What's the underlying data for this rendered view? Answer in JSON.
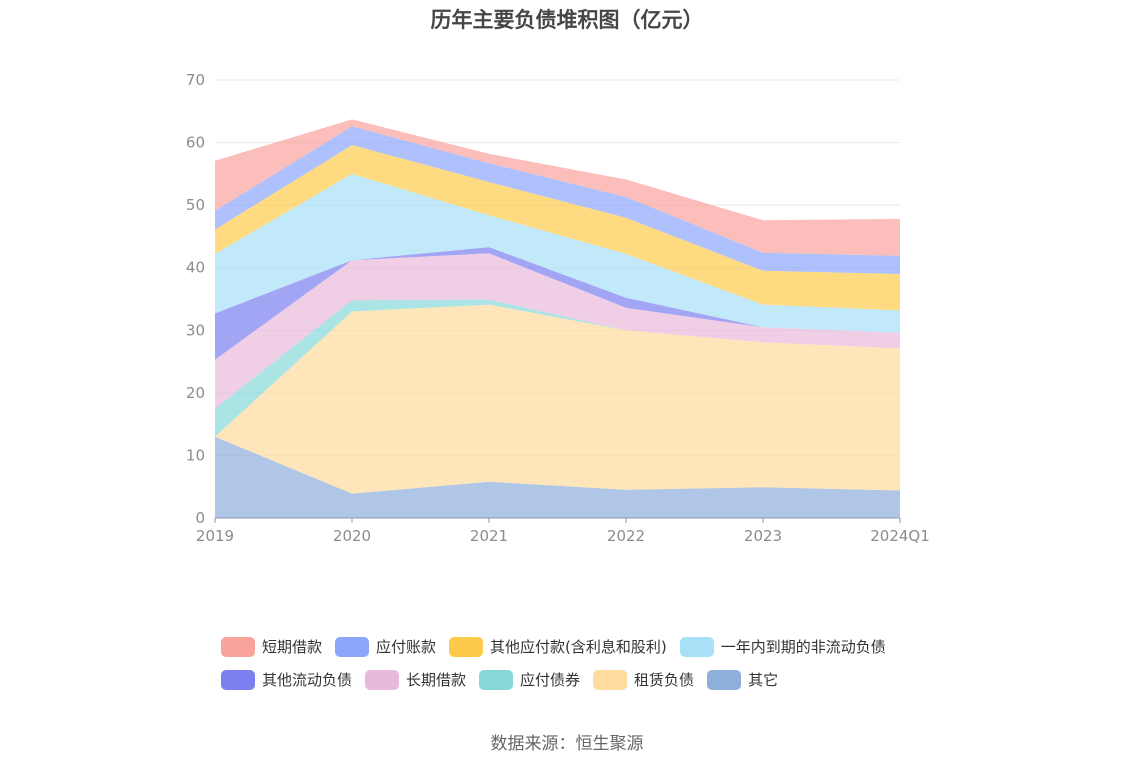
{
  "chart_data": {
    "type": "area",
    "stacked": true,
    "title": "历年主要负债堆积图（亿元）",
    "x": [
      "2019",
      "2020",
      "2021",
      "2022",
      "2023",
      "2024Q1"
    ],
    "ylim": [
      0,
      70
    ],
    "yticks": [
      "0",
      "10",
      "20",
      "30",
      "40",
      "50",
      "60",
      "70"
    ],
    "grid": true,
    "legend_position": "bottom",
    "series": [
      {
        "name": "其它",
        "color": "#8eaedb",
        "values": [
          13.0,
          3.9,
          5.8,
          4.5,
          4.9,
          4.4
        ]
      },
      {
        "name": "租赁负债",
        "color": "#fddc9d",
        "values": [
          0.0,
          29.1,
          28.3,
          25.5,
          23.2,
          22.7
        ]
      },
      {
        "name": "应付债券",
        "color": "#86d8d8",
        "values": [
          4.5,
          1.8,
          0.8,
          0.0,
          0.0,
          0.0
        ]
      },
      {
        "name": "长期借款",
        "color": "#e9b9dc",
        "values": [
          7.8,
          6.4,
          7.4,
          3.6,
          2.4,
          2.5
        ]
      },
      {
        "name": "其他流动负债",
        "color": "#7b7ff0",
        "values": [
          7.4,
          0.0,
          1.0,
          1.6,
          0.0,
          0.0
        ]
      },
      {
        "name": "一年内到期的非流动负债",
        "color": "#a8e0f8",
        "values": [
          9.5,
          13.8,
          5.1,
          7.0,
          3.6,
          3.6
        ]
      },
      {
        "name": "其他应付款(含利息和股利)",
        "color": "#fdca4c",
        "values": [
          3.9,
          4.6,
          5.3,
          5.8,
          5.4,
          5.8
        ]
      },
      {
        "name": "应付账款",
        "color": "#8ba7fb",
        "values": [
          3.0,
          3.0,
          3.0,
          3.3,
          2.9,
          2.9
        ]
      },
      {
        "name": "短期借款",
        "color": "#f9a39d",
        "values": [
          8.0,
          1.1,
          1.5,
          2.8,
          5.2,
          5.9
        ]
      }
    ]
  },
  "legend": [
    {
      "label": "短期借款",
      "color": "#f9a39d"
    },
    {
      "label": "应付账款",
      "color": "#8ba7fb"
    },
    {
      "label": "其他应付款(含利息和股利)",
      "color": "#fdca4c"
    },
    {
      "label": "一年内到期的非流动负债",
      "color": "#a8e0f8"
    },
    {
      "label": "其他流动负债",
      "color": "#7b7ff0"
    },
    {
      "label": "长期借款",
      "color": "#e9b9dc"
    },
    {
      "label": "应付债券",
      "color": "#86d8d8"
    },
    {
      "label": "租赁负债",
      "color": "#fddc9d"
    },
    {
      "label": "其它",
      "color": "#8eaedb"
    }
  ],
  "source": "数据来源：恒生聚源"
}
